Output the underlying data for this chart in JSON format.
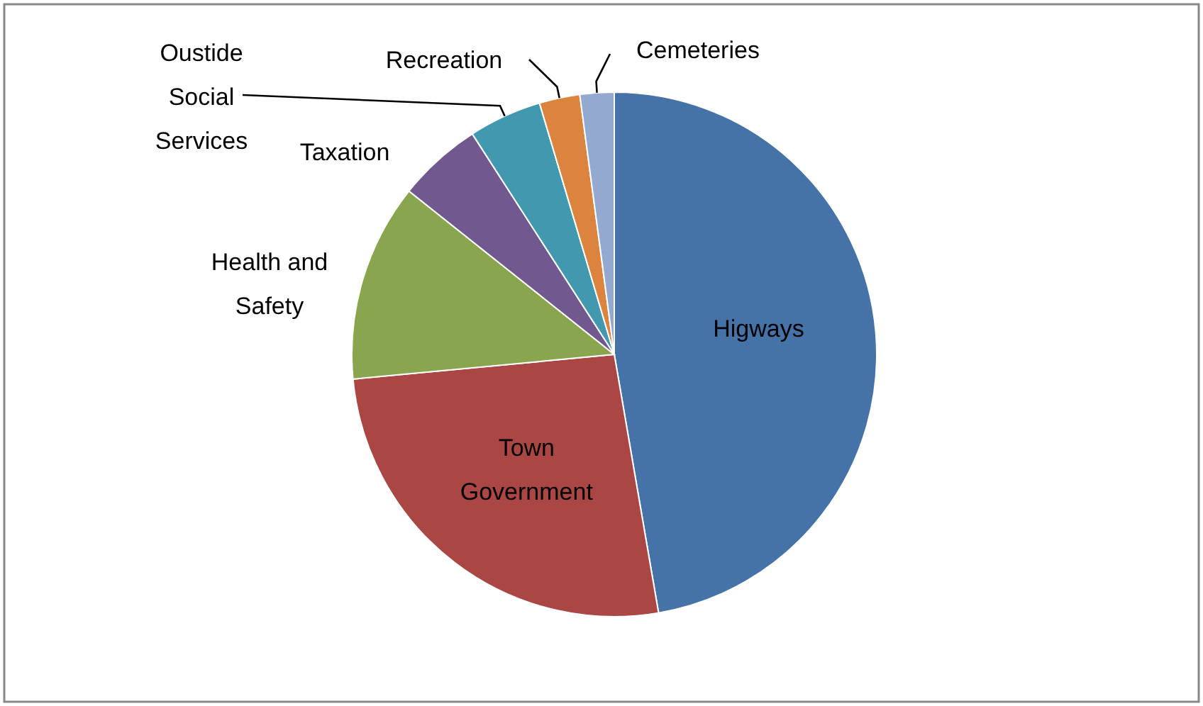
{
  "chart_data": {
    "type": "pie",
    "categories": [
      "Higways",
      "Town Government",
      "Health and Safety",
      "Taxation",
      "Oustide Social Services",
      "Recreation",
      "Cemeteries"
    ],
    "values": [
      47.3,
      26.2,
      12.2,
      5.2,
      4.5,
      2.5,
      2.1
    ],
    "colors": [
      "#4572a7",
      "#aa4643",
      "#89a54e",
      "#71588f",
      "#4198af",
      "#db843d",
      "#93a9cf"
    ]
  }
}
